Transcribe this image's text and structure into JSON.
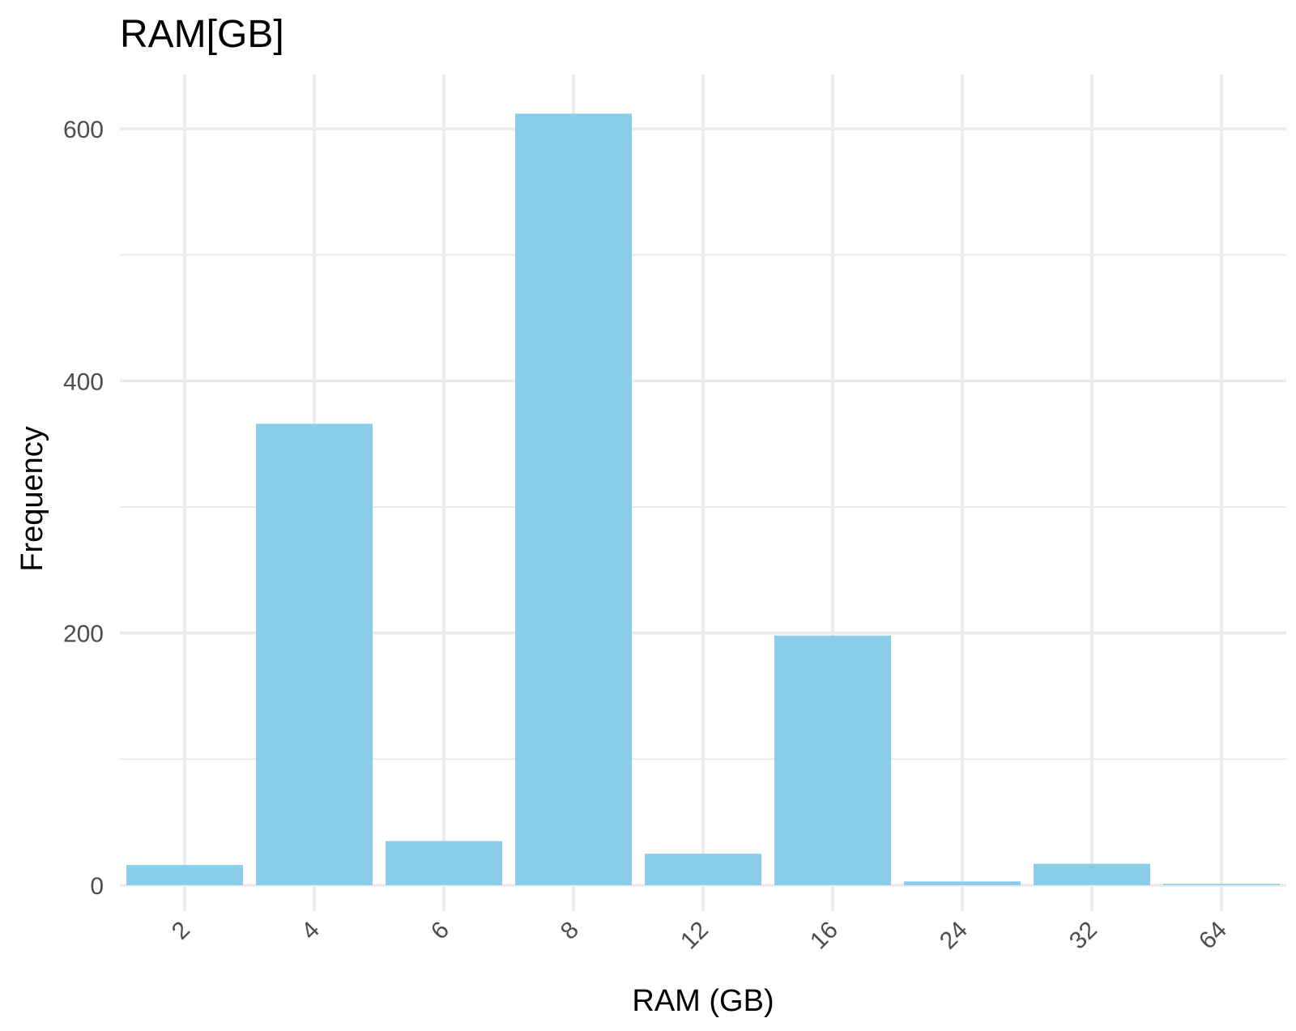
{
  "chart_data": {
    "type": "bar",
    "title": "RAM[GB]",
    "xlabel": "RAM (GB)",
    "ylabel": "Frequency",
    "categories": [
      "2",
      "4",
      "6",
      "8",
      "12",
      "16",
      "24",
      "32",
      "64"
    ],
    "values": [
      16,
      366,
      35,
      612,
      25,
      198,
      3,
      17,
      1
    ],
    "ylim": [
      -17,
      642
    ],
    "yticks": [
      0,
      200,
      400,
      600
    ],
    "y_minor_ticks": [
      100,
      300,
      500
    ],
    "grid": true,
    "legend": "none",
    "x_tick_rotation_deg": 45,
    "bar_color": "#89CDE9",
    "grid_color": "#EBEBEB",
    "background_color": "#FFFFFF"
  }
}
